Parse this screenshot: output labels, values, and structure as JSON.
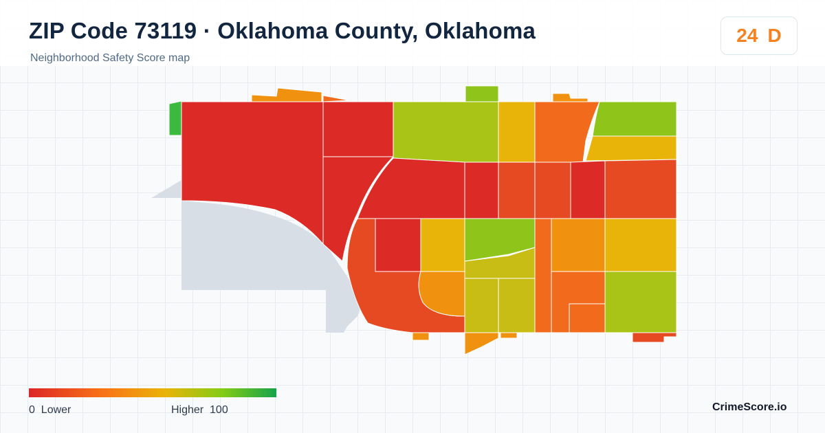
{
  "header": {
    "title": "ZIP Code 73119 · Oklahoma County, Oklahoma",
    "subtitle": "Neighborhood Safety Score map"
  },
  "score": {
    "value": "24",
    "grade": "D",
    "color": "#f58220"
  },
  "legend": {
    "min_value": "0",
    "min_label": "Lower",
    "max_label": "Higher",
    "max_value": "100",
    "colors": [
      "#dc2626",
      "#f97316",
      "#eab308",
      "#84cc16",
      "#16a34a"
    ]
  },
  "brand": "CrimeScore.io",
  "map": {
    "water_color": "#d8dee6",
    "tile_border": "#ffffff",
    "region_colors": {
      "low": "#dc2b27",
      "low_mid": "#e54a22",
      "orange": "#f26b1d",
      "amber": "#f0920f",
      "yellow": "#e9b40a",
      "olive": "#c8bd14",
      "lime": "#a9c416",
      "green_lime": "#8fc41a",
      "green": "#3cba3f"
    }
  }
}
